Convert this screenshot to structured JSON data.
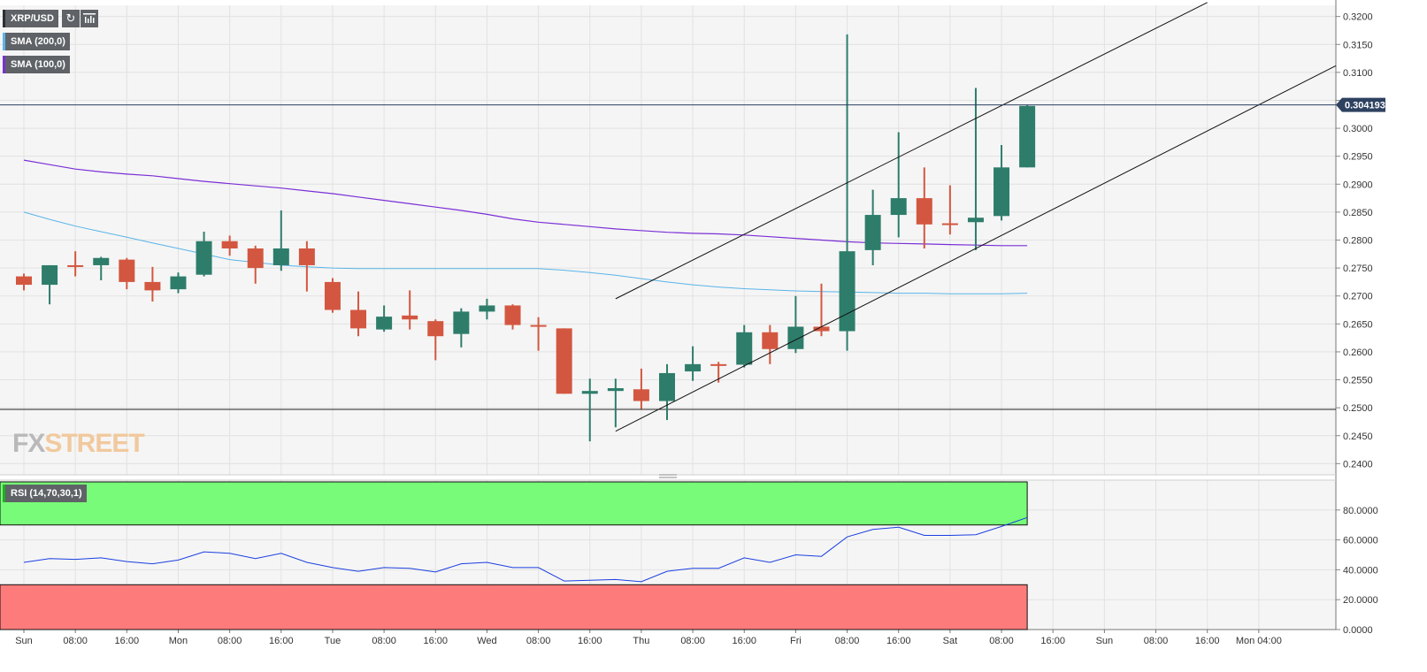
{
  "symbol": "XRP/USD",
  "toolbar": {
    "refresh_icon": "refresh-icon",
    "bar_style_icon": "bar-chart-icon"
  },
  "legends": {
    "sma200": {
      "label": "SMA (200,0)",
      "color": "#5ab4e8"
    },
    "sma100": {
      "label": "SMA (100,0)",
      "color": "#7b2fd6"
    },
    "rsi": {
      "label": "RSI (14,70,30,1)",
      "color": "#1a3fe0"
    }
  },
  "watermark": {
    "part1": "FX",
    "part2": "STREET"
  },
  "colors": {
    "up": "#2e7d6b",
    "down": "#d35740",
    "overbought_zone": "#78fb78",
    "oversold_zone": "#fd7b7b",
    "price_line": "#2d4160"
  },
  "chart_data": [
    {
      "type": "candlestick",
      "name": "XRP/USD",
      "timeframe_hours": 4,
      "ylim": [
        0.238,
        0.322
      ],
      "y_ticks": [
        0.24,
        0.245,
        0.25,
        0.255,
        0.26,
        0.265,
        0.27,
        0.275,
        0.28,
        0.285,
        0.29,
        0.295,
        0.3,
        0.305,
        0.31,
        0.315,
        0.32
      ],
      "y_tick_labels": [
        "0.2400",
        "0.2450",
        "0.2500",
        "0.2550",
        "0.2600",
        "0.2650",
        "0.2700",
        "0.2750",
        "0.2800",
        "0.2850",
        "0.2900",
        "0.2950",
        "0.3000",
        "",
        "0.3100",
        "0.3150",
        "0.3200"
      ],
      "x_ticks": [
        "Sun",
        "08:00",
        "16:00",
        "Mon",
        "08:00",
        "16:00",
        "Tue",
        "08:00",
        "16:00",
        "Wed",
        "08:00",
        "16:00",
        "Thu",
        "08:00",
        "16:00",
        "Fri",
        "08:00",
        "16:00",
        "Sat",
        "08:00",
        "16:00",
        "Sun",
        "08:00",
        "16:00",
        "Mon 04:00"
      ],
      "last_price": 0.304193,
      "last_price_label": "0.304193",
      "horizontal_levels": [
        0.2497
      ],
      "candles": [
        {
          "o": 0.2735,
          "h": 0.274,
          "l": 0.271,
          "c": 0.272
        },
        {
          "o": 0.272,
          "h": 0.2755,
          "l": 0.2685,
          "c": 0.2755
        },
        {
          "o": 0.2755,
          "h": 0.278,
          "l": 0.2735,
          "c": 0.2753
        },
        {
          "o": 0.2755,
          "h": 0.277,
          "l": 0.2728,
          "c": 0.2768
        },
        {
          "o": 0.2765,
          "h": 0.2768,
          "l": 0.2712,
          "c": 0.2725
        },
        {
          "o": 0.2725,
          "h": 0.2752,
          "l": 0.269,
          "c": 0.271
        },
        {
          "o": 0.2712,
          "h": 0.2742,
          "l": 0.2705,
          "c": 0.2735
        },
        {
          "o": 0.2738,
          "h": 0.2815,
          "l": 0.2735,
          "c": 0.2798
        },
        {
          "o": 0.2798,
          "h": 0.2808,
          "l": 0.2772,
          "c": 0.2785
        },
        {
          "o": 0.2785,
          "h": 0.279,
          "l": 0.2722,
          "c": 0.275
        },
        {
          "o": 0.2755,
          "h": 0.2853,
          "l": 0.2745,
          "c": 0.2785
        },
        {
          "o": 0.2785,
          "h": 0.2798,
          "l": 0.2708,
          "c": 0.2755
        },
        {
          "o": 0.2725,
          "h": 0.2732,
          "l": 0.267,
          "c": 0.2675
        },
        {
          "o": 0.2675,
          "h": 0.2708,
          "l": 0.2628,
          "c": 0.2642
        },
        {
          "o": 0.264,
          "h": 0.2683,
          "l": 0.2636,
          "c": 0.2663
        },
        {
          "o": 0.2665,
          "h": 0.271,
          "l": 0.264,
          "c": 0.2658
        },
        {
          "o": 0.2655,
          "h": 0.2658,
          "l": 0.2585,
          "c": 0.2628
        },
        {
          "o": 0.2632,
          "h": 0.2678,
          "l": 0.2608,
          "c": 0.2672
        },
        {
          "o": 0.2672,
          "h": 0.2695,
          "l": 0.2658,
          "c": 0.2683
        },
        {
          "o": 0.2683,
          "h": 0.2685,
          "l": 0.264,
          "c": 0.2648
        },
        {
          "o": 0.2648,
          "h": 0.2662,
          "l": 0.2602,
          "c": 0.2645
        },
        {
          "o": 0.2642,
          "h": 0.2642,
          "l": 0.2525,
          "c": 0.2525
        },
        {
          "o": 0.2525,
          "h": 0.2552,
          "l": 0.244,
          "c": 0.253
        },
        {
          "o": 0.253,
          "h": 0.2552,
          "l": 0.2465,
          "c": 0.2535
        },
        {
          "o": 0.2533,
          "h": 0.257,
          "l": 0.2498,
          "c": 0.2512
        },
        {
          "o": 0.2512,
          "h": 0.2578,
          "l": 0.2478,
          "c": 0.2562
        },
        {
          "o": 0.2565,
          "h": 0.261,
          "l": 0.2548,
          "c": 0.2578
        },
        {
          "o": 0.2578,
          "h": 0.2582,
          "l": 0.2545,
          "c": 0.2577
        },
        {
          "o": 0.2577,
          "h": 0.2648,
          "l": 0.2572,
          "c": 0.2635
        },
        {
          "o": 0.2635,
          "h": 0.2648,
          "l": 0.2578,
          "c": 0.2605
        },
        {
          "o": 0.2605,
          "h": 0.27,
          "l": 0.2598,
          "c": 0.2645
        },
        {
          "o": 0.2645,
          "h": 0.2722,
          "l": 0.2628,
          "c": 0.2637
        },
        {
          "o": 0.2637,
          "h": 0.3168,
          "l": 0.2602,
          "c": 0.278
        },
        {
          "o": 0.2782,
          "h": 0.289,
          "l": 0.2755,
          "c": 0.2845
        },
        {
          "o": 0.2845,
          "h": 0.2993,
          "l": 0.2805,
          "c": 0.2875
        },
        {
          "o": 0.2875,
          "h": 0.293,
          "l": 0.2785,
          "c": 0.2828
        },
        {
          "o": 0.283,
          "h": 0.2898,
          "l": 0.281,
          "c": 0.2828
        },
        {
          "o": 0.2832,
          "h": 0.3072,
          "l": 0.2782,
          "c": 0.284
        },
        {
          "o": 0.2843,
          "h": 0.297,
          "l": 0.2835,
          "c": 0.293
        },
        {
          "o": 0.293,
          "h": 0.3042,
          "l": 0.293,
          "c": 0.304
        }
      ],
      "sma100": [
        0.2943,
        0.2935,
        0.2927,
        0.2922,
        0.2918,
        0.2915,
        0.291,
        0.2905,
        0.2901,
        0.2897,
        0.2893,
        0.2888,
        0.2883,
        0.2877,
        0.2871,
        0.2865,
        0.2859,
        0.2853,
        0.2846,
        0.2838,
        0.2832,
        0.2828,
        0.2824,
        0.282,
        0.2817,
        0.2814,
        0.2812,
        0.2811,
        0.2809,
        0.2806,
        0.2803,
        0.28,
        0.2797,
        0.2795,
        0.2794,
        0.2793,
        0.2792,
        0.2791,
        0.279,
        0.279
      ],
      "sma200": [
        0.285,
        0.2837,
        0.2825,
        0.2815,
        0.2805,
        0.2795,
        0.2785,
        0.2775,
        0.2765,
        0.276,
        0.2755,
        0.2752,
        0.275,
        0.2749,
        0.2749,
        0.2749,
        0.2749,
        0.2749,
        0.2749,
        0.2749,
        0.2749,
        0.2746,
        0.2742,
        0.2737,
        0.2731,
        0.2725,
        0.272,
        0.2716,
        0.2713,
        0.2711,
        0.2709,
        0.2708,
        0.2707,
        0.2706,
        0.2705,
        0.2705,
        0.2704,
        0.2704,
        0.2704,
        0.2705
      ],
      "channel": [
        {
          "from": [
            23,
            0.2695
          ],
          "to": [
            46,
            0.3225
          ]
        },
        {
          "from": [
            23,
            0.2458
          ],
          "to": [
            51,
            0.3112
          ]
        }
      ]
    },
    {
      "type": "line",
      "name": "RSI (14,70,30,1)",
      "ylim": [
        0,
        100
      ],
      "y_ticks": [
        0,
        20,
        40,
        60,
        80
      ],
      "y_tick_labels": [
        "0.0000",
        "20.0000",
        "40.0000",
        "60.0000",
        "80.0000"
      ],
      "overbought": 70,
      "oversold": 30,
      "values": [
        45,
        47.5,
        47,
        48,
        45.5,
        44,
        46.5,
        52,
        51,
        47.5,
        51,
        45,
        41.5,
        39,
        41.5,
        41,
        38.5,
        44,
        45,
        41.5,
        41.5,
        32.5,
        33,
        33.5,
        32,
        39,
        41,
        41,
        48,
        45,
        50,
        49,
        62,
        67,
        68.5,
        63,
        63,
        63.5,
        69,
        75
      ]
    }
  ]
}
